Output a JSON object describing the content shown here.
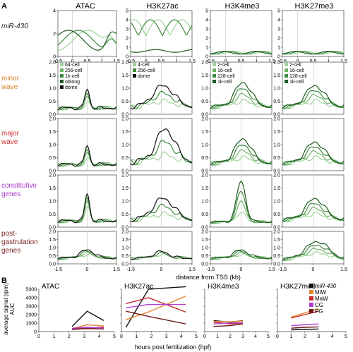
{
  "panel_a_letter": "A",
  "panel_b_letter": "B",
  "columns": [
    "ATAC",
    "H3K27ac",
    "H3K4me3",
    "H3K27me3"
  ],
  "panel_a_xlabel": "distance from TSS (kb)",
  "panel_b_xlabel": "hours post fertilization (hpf)",
  "panel_b_ylabel_1": "average signal (rpm)",
  "panel_b_ylabel_2": "AUC",
  "colors": {
    "dark_green": "#1f5a1f",
    "mid_green": "#3f8a3f",
    "light_green": "#9fd39a",
    "black": "#111111",
    "miR430": "#111111",
    "MiW": "#e0862a",
    "MaW": "#c62828",
    "CG": "#b33ad6",
    "PG": "#6b1a1a",
    "row_minor": "#d9822b",
    "row_major": "#d32f2f",
    "row_constitutive": "#a935c9",
    "row_post": "#7a1f1f"
  },
  "chart_data": [
    {
      "type": "line",
      "title": "Panel A",
      "rows": [
        {
          "label_lines": [
            "miR-430"
          ],
          "italic": true,
          "ylim": [
            0,
            6
          ]
        },
        {
          "label_lines": [
            "minor",
            "wave"
          ],
          "italic": false,
          "ylim": [
            0,
            2
          ]
        },
        {
          "label_lines": [
            "major",
            "wave"
          ],
          "italic": false,
          "ylim": [
            0,
            2
          ]
        },
        {
          "label_lines": [
            "constitutive",
            "genes"
          ],
          "italic": false,
          "ylim": [
            0,
            2
          ]
        },
        {
          "label_lines": [
            "post-",
            "gastrulation",
            "genes"
          ],
          "italic": false,
          "ylim": [
            0,
            2
          ]
        }
      ],
      "row0_yticks": [
        [
          "0",
          "2",
          "4"
        ],
        [
          "0",
          "1",
          "2",
          "3",
          "4",
          "5"
        ],
        [
          "0",
          "1",
          "2",
          "3",
          "4",
          "5"
        ],
        [
          "0",
          "1",
          "2",
          "3",
          "4",
          "5"
        ]
      ],
      "row_yticks": [
        "0.0",
        "0.5",
        "1.0",
        "1.5",
        "2.0"
      ],
      "row0_xticks": [
        "-0.5",
        "0",
        "0.5",
        "1",
        "1.5"
      ],
      "bottom_xticks": [
        "-1.5",
        "0",
        "1.5"
      ],
      "legends": [
        {
          "col": 0,
          "entries": [
            [
              "64-cell",
              "#9fd39a"
            ],
            [
              "256-cell",
              "#6fb36a"
            ],
            [
              "1k-cell",
              "#3f8a3f"
            ],
            [
              "oblong",
              "#1f5a1f"
            ],
            [
              "dome",
              "#111111"
            ]
          ]
        },
        {
          "col": 1,
          "entries": [
            [
              "4-cell",
              "#9fd39a"
            ],
            [
              "256-cell",
              "#3f8a3f"
            ],
            [
              "dome",
              "#111111"
            ]
          ]
        },
        {
          "col": 2,
          "entries": [
            [
              "2-cell",
              "#9fd39a"
            ],
            [
              "16-cell",
              "#6fb36a"
            ],
            [
              "128-cell",
              "#3f8a3f"
            ],
            [
              "1k-cell",
              "#1f5a1f"
            ]
          ]
        },
        {
          "col": 3,
          "entries": [
            [
              "2-cell",
              "#9fd39a"
            ],
            [
              "16-cell",
              "#6fb36a"
            ],
            [
              "128-cell",
              "#3f8a3f"
            ],
            [
              "1k-cell",
              "#1f5a1f"
            ]
          ]
        }
      ]
    },
    {
      "type": "line",
      "title": "Panel B",
      "ylim": [
        0,
        5000
      ],
      "yticks": [
        "0",
        "1000",
        "2000",
        "3000",
        "4000",
        "5000"
      ],
      "xticks": [
        "0",
        "1",
        "2",
        "3",
        "4",
        "5"
      ],
      "xlim": [
        0,
        5
      ],
      "legend": [
        {
          "name": "miR-430",
          "color": "#111111",
          "italic": true
        },
        {
          "name": "MiW",
          "color": "#e0862a",
          "italic": false
        },
        {
          "name": "MaW",
          "color": "#c62828",
          "italic": false
        },
        {
          "name": "CG",
          "color": "#b33ad6",
          "italic": false
        },
        {
          "name": "PG",
          "color": "#6b1a1a",
          "italic": false
        }
      ],
      "panels": [
        {
          "title": "ATAC",
          "series": [
            {
              "name": "miR-430",
              "x": [
                2.2,
                3.2,
                4.3
              ],
              "y": [
                600,
                2400,
                1300
              ]
            },
            {
              "name": "MiW",
              "x": [
                2.2,
                3.2,
                4.3
              ],
              "y": [
                350,
                800,
                650
              ]
            },
            {
              "name": "MaW",
              "x": [
                2.2,
                3.2,
                4.3
              ],
              "y": [
                300,
                400,
                500
              ]
            },
            {
              "name": "CG",
              "x": [
                2.2,
                3.2,
                4.3
              ],
              "y": [
                380,
                500,
                420
              ]
            },
            {
              "name": "PG",
              "x": [
                2.2,
                3.2,
                4.3
              ],
              "y": [
                250,
                350,
                300
              ]
            }
          ]
        },
        {
          "title": "H3K27ac",
          "series": [
            {
              "name": "miR-430",
              "x": [
                0.3,
                1.8,
                4.3
              ],
              "y": [
                500,
                5000,
                5300
              ]
            },
            {
              "name": "MiW",
              "x": [
                0.3,
                1.8,
                4.3
              ],
              "y": [
                1400,
                2300,
                4200
              ]
            },
            {
              "name": "MaW",
              "x": [
                0.3,
                1.8,
                4.3
              ],
              "y": [
                3300,
                4000,
                2300
              ]
            },
            {
              "name": "CG",
              "x": [
                0.3,
                1.8,
                4.3
              ],
              "y": [
                2800,
                3200,
                3200
              ]
            },
            {
              "name": "PG",
              "x": [
                0.3,
                1.8,
                4.3
              ],
              "y": [
                2400,
                1800,
                900
              ]
            }
          ]
        },
        {
          "title": "H3K4me3",
          "series": [
            {
              "name": "miR-430",
              "x": [
                0.7,
                2.0,
                3.0
              ],
              "y": [
                1300,
                1100,
                1300
              ]
            },
            {
              "name": "MiW",
              "x": [
                0.7,
                2.0,
                3.0
              ],
              "y": [
                1200,
                1150,
                1250
              ]
            },
            {
              "name": "MaW",
              "x": [
                0.7,
                2.0,
                3.0
              ],
              "y": [
                1100,
                900,
                1000
              ]
            },
            {
              "name": "CG",
              "x": [
                0.7,
                2.0,
                3.0
              ],
              "y": [
                900,
                1000,
                1050
              ]
            },
            {
              "name": "PG",
              "x": [
                0.7,
                2.0,
                3.0
              ],
              "y": [
                600,
                700,
                900
              ]
            }
          ]
        },
        {
          "title": "H3K27me3",
          "series": [
            {
              "name": "miR-430",
              "x": [
                1.0,
                2.0,
                3.0
              ],
              "y": [
                200,
                250,
                300
              ]
            },
            {
              "name": "MiW",
              "x": [
                1.0,
                2.0,
                3.0
              ],
              "y": [
                1700,
                2200,
                2700
              ]
            },
            {
              "name": "MaW",
              "x": [
                1.0,
                2.0,
                3.0
              ],
              "y": [
                1600,
                2000,
                2400
              ]
            },
            {
              "name": "CG",
              "x": [
                1.0,
                2.0,
                3.0
              ],
              "y": [
                700,
                800,
                900
              ]
            },
            {
              "name": "PG",
              "x": [
                1.0,
                2.0,
                3.0
              ],
              "y": [
                400,
                500,
                550
              ]
            }
          ]
        }
      ]
    }
  ]
}
